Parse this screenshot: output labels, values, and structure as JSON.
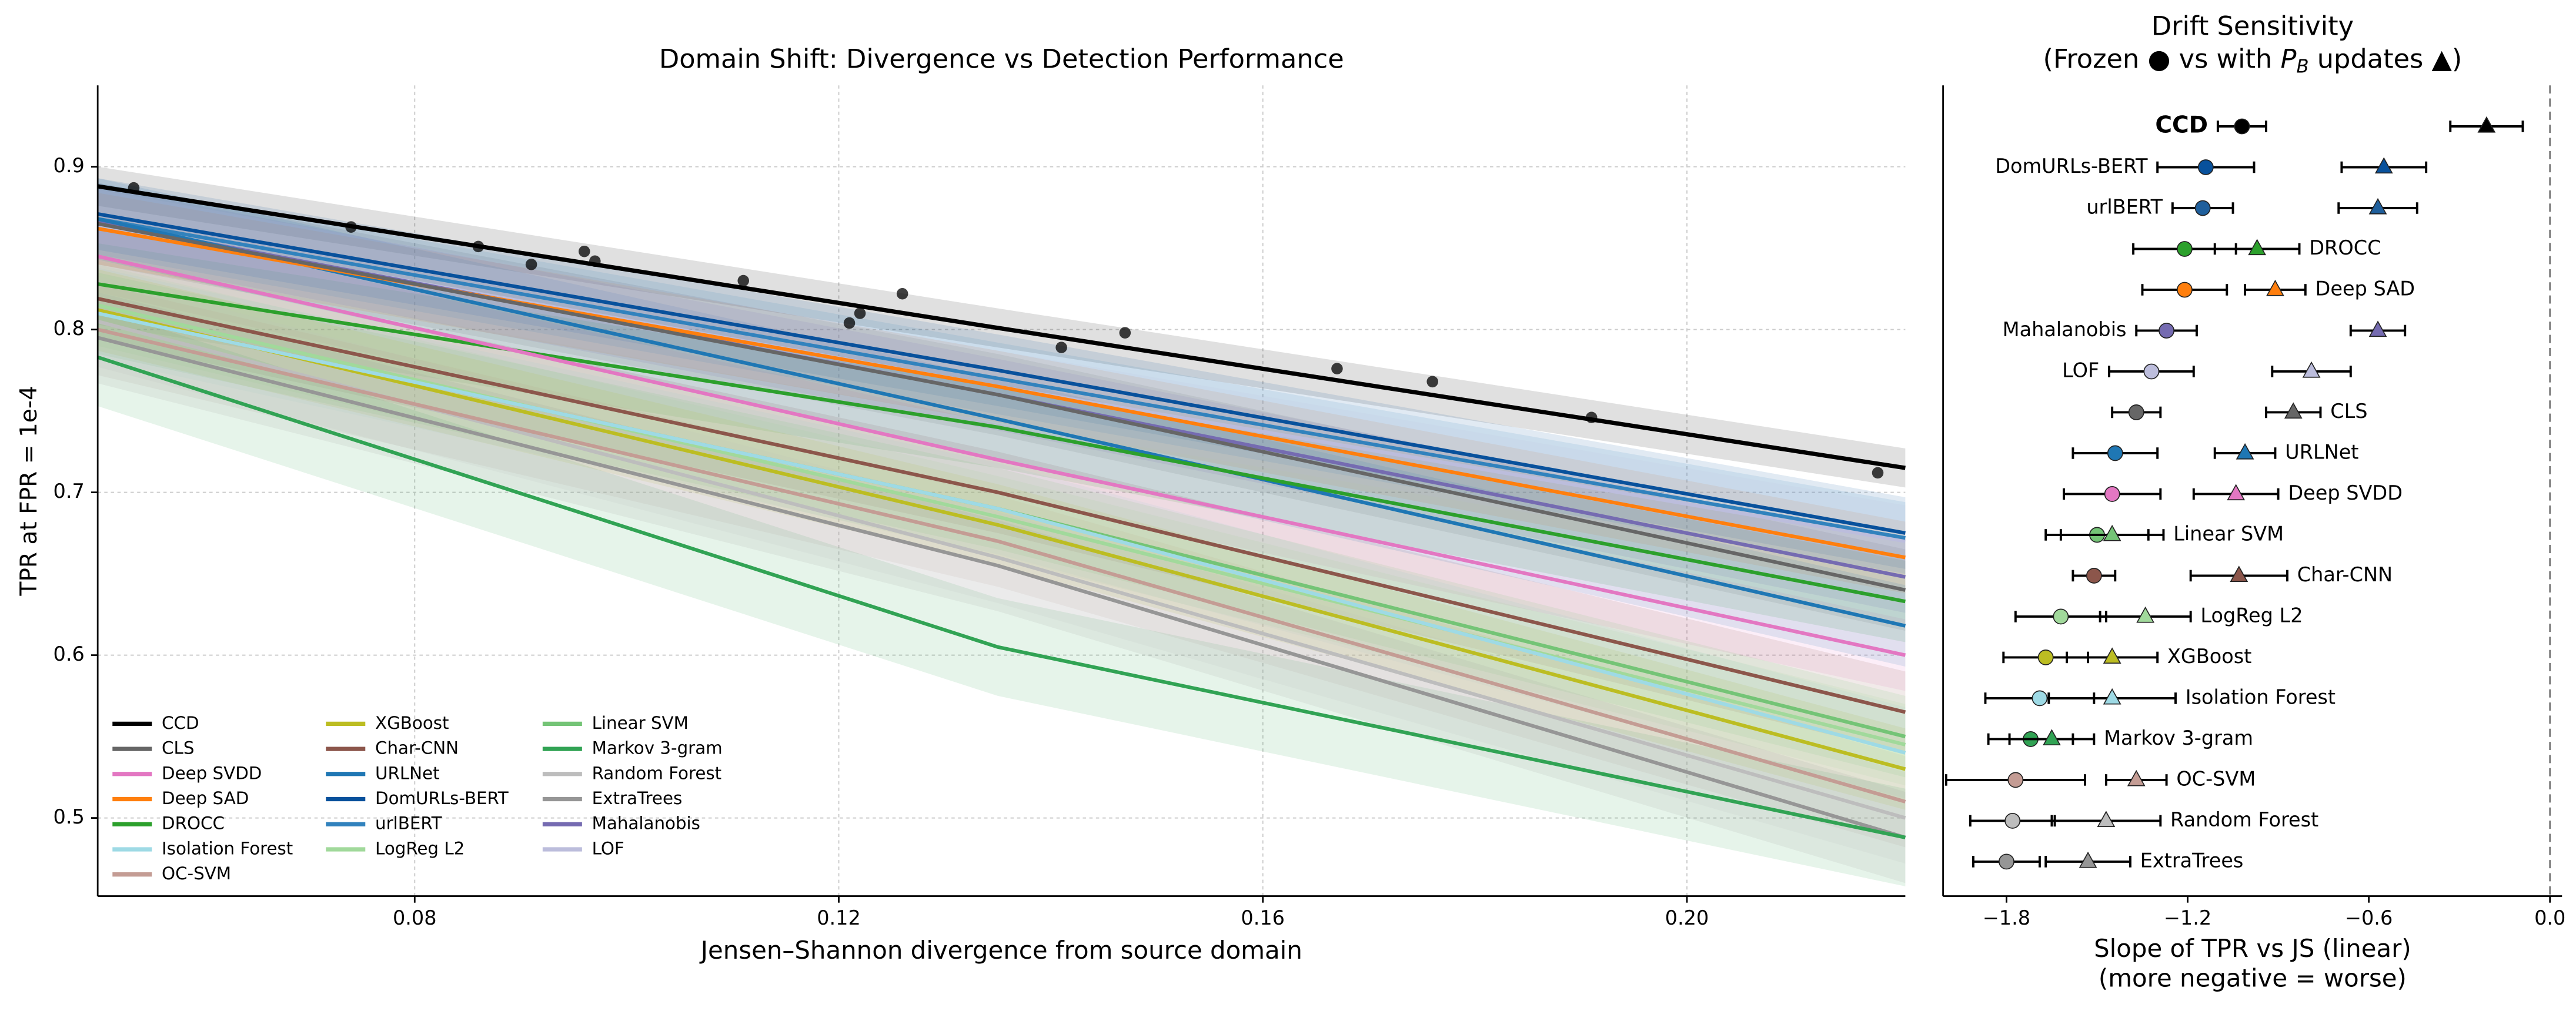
{
  "chart_data": [
    {
      "type": "line",
      "title": "Domain Shift: Divergence vs Detection Performance",
      "xlabel": "Jensen–Shannon divergence from source domain",
      "ylabel": "TPR at FPR = 1e-4",
      "xlim": [
        0.0501,
        0.2206
      ],
      "ylim": [
        0.452,
        0.95
      ],
      "xticks": [
        0.08,
        0.12,
        0.16,
        {
          "value": 0.2,
          "label": "0.20"
        }
      ],
      "yticks": [
        0.5,
        0.6,
        0.7,
        0.8,
        0.9
      ],
      "grid": true,
      "legend": "lower left",
      "x": [
        0.0501,
        0.135,
        0.2206
      ],
      "series": [
        {
          "name": "CCD",
          "color": "#000000",
          "values": [
            0.888,
            0.801,
            0.715
          ],
          "band": 0.012,
          "points": {
            "x": [
              0.0535,
              0.074,
              0.086,
              0.091,
              0.096,
              0.097,
              0.111,
              0.121,
              0.122,
              0.126,
              0.141,
              0.147,
              0.167,
              0.176,
              0.191,
              0.218
            ],
            "values": [
              0.887,
              0.863,
              0.851,
              0.84,
              0.848,
              0.842,
              0.83,
              0.804,
              0.81,
              0.822,
              0.789,
              0.798,
              0.776,
              0.768,
              0.746,
              0.712
            ]
          }
        },
        {
          "name": "CLS",
          "color": "#666666",
          "values": [
            0.865,
            0.76,
            0.64
          ],
          "band": 0.025
        },
        {
          "name": "Deep SVDD",
          "color": "#e377c2",
          "values": [
            0.845,
            0.72,
            0.6
          ],
          "band": 0.022
        },
        {
          "name": "Deep SAD",
          "color": "#ff7f0e",
          "values": [
            0.862,
            0.765,
            0.66
          ],
          "band": 0.022
        },
        {
          "name": "DROCC",
          "color": "#2ca02c",
          "values": [
            0.828,
            0.74,
            0.633
          ],
          "band": 0.025
        },
        {
          "name": "Isolation Forest",
          "color": "#9edae5",
          "values": [
            0.81,
            0.69,
            0.54
          ],
          "band": 0.028
        },
        {
          "name": "OC-SVM",
          "color": "#c49c94",
          "values": [
            0.8,
            0.67,
            0.51
          ],
          "band": 0.028
        },
        {
          "name": "XGBoost",
          "color": "#bcbd22",
          "values": [
            0.812,
            0.68,
            0.53
          ],
          "band": 0.025
        },
        {
          "name": "Char-CNN",
          "color": "#8c564b",
          "values": [
            0.819,
            0.7,
            0.565
          ],
          "band": 0.025
        },
        {
          "name": "URLNet",
          "color": "#1f77b4",
          "values": [
            0.868,
            0.745,
            0.618
          ],
          "band": 0.025
        },
        {
          "name": "DomURLs-BERT",
          "color": "#08519c",
          "values": [
            0.871,
            0.775,
            0.675
          ],
          "band": 0.022
        },
        {
          "name": "urlBERT",
          "color": "#3182bd",
          "values": [
            0.868,
            0.77,
            0.672
          ],
          "band": 0.022
        },
        {
          "name": "LogReg L2",
          "color": "#a1d99b",
          "values": [
            0.815,
            0.685,
            0.545
          ],
          "band": 0.025
        },
        {
          "name": "Linear SVM",
          "color": "#74c476",
          "values": [
            0.81,
            0.69,
            0.55
          ],
          "band": 0.025
        },
        {
          "name": "Markov 3-gram",
          "color": "#31a354",
          "values": [
            0.783,
            0.605,
            0.488
          ],
          "band": 0.03
        },
        {
          "name": "Random Forest",
          "color": "#bdbdbd",
          "values": [
            0.805,
            0.66,
            0.5
          ],
          "band": 0.028
        },
        {
          "name": "ExtraTrees",
          "color": "#969696",
          "values": [
            0.795,
            0.655,
            0.488
          ],
          "band": 0.028
        },
        {
          "name": "Mahalanobis",
          "color": "#756bb1",
          "values": [
            0.866,
            0.76,
            0.648
          ],
          "band": 0.022
        },
        {
          "name": "LOF",
          "color": "#bcbddc",
          "values": [
            0.864,
            0.765,
            0.67
          ],
          "band": 0.022
        }
      ]
    },
    {
      "type": "dot",
      "title": "Drift Sensitivity",
      "subtitle": [
        "(Frozen ● vs with ",
        "P",
        "B",
        " updates ▲)"
      ],
      "xlabel": [
        "Slope of TPR vs JS (linear)",
        "(more negative = worse)"
      ],
      "xlim": [
        -2.01,
        0.04
      ],
      "xticks": [
        {
          "value": -1.8,
          "label": "−1.8"
        },
        {
          "value": -1.2,
          "label": "−1.2"
        },
        {
          "value": -0.6,
          "label": "−0.6"
        },
        {
          "value": 0,
          "label": "0.0"
        }
      ],
      "categories": [
        "CCD",
        "DomURLs-BERT",
        "urlBERT",
        "DROCC",
        "Deep SAD",
        "Mahalanobis",
        "LOF",
        "CLS",
        "URLNet",
        "Deep SVDD",
        "Linear SVM",
        "Char-CNN",
        "LogReg L2",
        "XGBoost",
        "Isolation Forest",
        "Markov 3-gram",
        "OC-SVM",
        "Random Forest",
        "ExtraTrees"
      ],
      "colors": [
        "#000000",
        "#08519c",
        "#1f5f9c",
        "#2ca02c",
        "#ff7f0e",
        "#756bb1",
        "#bcbddc",
        "#666666",
        "#1f77b4",
        "#e377c2",
        "#74c476",
        "#8c564b",
        "#a1d99b",
        "#bcbd22",
        "#9edae5",
        "#31a354",
        "#c49c94",
        "#bdbdbd",
        "#969696"
      ],
      "series": [
        {
          "marker": "circle",
          "values": [
            -1.02,
            -1.14,
            -1.15,
            -1.21,
            -1.21,
            -1.27,
            -1.32,
            -1.37,
            -1.44,
            -1.45,
            -1.5,
            -1.51,
            -1.62,
            -1.67,
            -1.69,
            -1.72,
            -1.77,
            -1.78,
            -1.8
          ],
          "errors": [
            0.08,
            0.16,
            0.1,
            0.17,
            0.14,
            0.1,
            0.14,
            0.08,
            0.14,
            0.16,
            0.17,
            0.07,
            0.15,
            0.14,
            0.18,
            0.14,
            0.23,
            0.14,
            0.11
          ]
        },
        {
          "marker": "triangle",
          "values": [
            -0.21,
            -0.55,
            -0.57,
            -0.97,
            -0.91,
            -0.57,
            -0.79,
            -0.85,
            -1.01,
            -1.04,
            -1.45,
            -1.03,
            -1.34,
            -1.45,
            -1.45,
            -1.65,
            -1.37,
            -1.47,
            -1.53
          ],
          "errors": [
            0.12,
            0.14,
            0.13,
            0.14,
            0.1,
            0.09,
            0.13,
            0.09,
            0.1,
            0.14,
            0.17,
            0.16,
            0.15,
            0.15,
            0.21,
            0.14,
            0.1,
            0.18,
            0.14
          ]
        }
      ]
    }
  ]
}
